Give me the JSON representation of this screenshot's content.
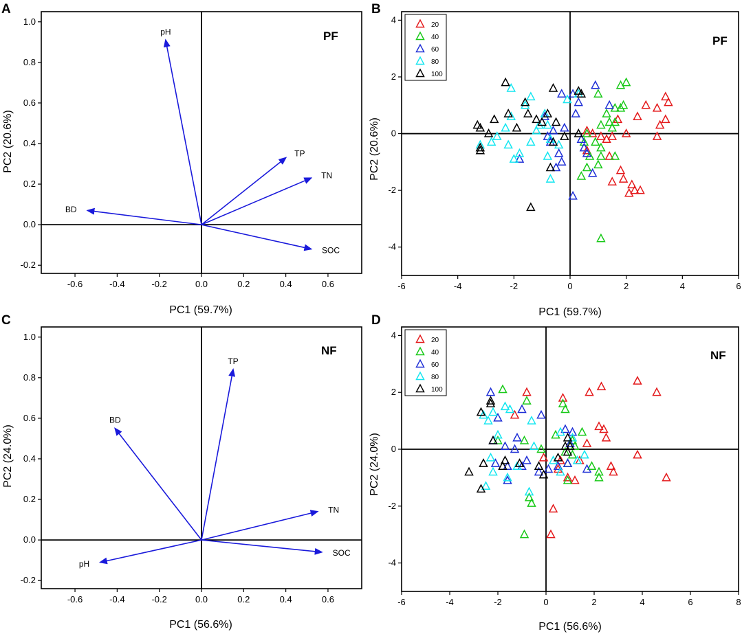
{
  "figure": {
    "panels": {
      "A": {
        "letter": "A",
        "tag": "PF"
      },
      "B": {
        "letter": "B",
        "tag": "PF"
      },
      "C": {
        "letter": "C",
        "tag": "NF"
      },
      "D": {
        "letter": "D",
        "tag": "NF"
      }
    }
  },
  "colors": {
    "vector": "#1a1adb",
    "axis": "#000000",
    "20": "#e41a1c",
    "40": "#19c919",
    "60": "#1f2fd6",
    "80": "#14e6f0",
    "100": "#000000"
  },
  "chart_data": [
    {
      "id": "A",
      "type": "scatter",
      "subtype": "loading-vectors",
      "xlabel": "PC1 (59.7%)",
      "ylabel": "PC2 (20.6%)",
      "xlim": [
        -0.76,
        0.76
      ],
      "ylim": [
        -0.24,
        1.05
      ],
      "xticks": [
        "-0.6",
        "-0.4",
        "-0.2",
        "0.0",
        "0.2",
        "0.4",
        "0.6"
      ],
      "xtick_values": [
        -0.6,
        -0.4,
        -0.2,
        0.0,
        0.2,
        0.4,
        0.6
      ],
      "yticks": [
        "-0.2",
        "0.0",
        "0.2",
        "0.4",
        "0.6",
        "0.8",
        "1.0"
      ],
      "ytick_values": [
        -0.2,
        0.0,
        0.2,
        0.4,
        0.6,
        0.8,
        1.0
      ],
      "vectors": [
        {
          "name": "pH",
          "x": -0.17,
          "y": 0.91
        },
        {
          "name": "TP",
          "x": 0.4,
          "y": 0.33
        },
        {
          "name": "TN",
          "x": 0.52,
          "y": 0.23
        },
        {
          "name": "BD",
          "x": -0.54,
          "y": 0.07
        },
        {
          "name": "SOC",
          "x": 0.52,
          "y": -0.12
        }
      ]
    },
    {
      "id": "B",
      "type": "scatter",
      "xlabel": "PC1 (59.7%)",
      "ylabel": "PC2 (20.6%)",
      "xlim": [
        -6,
        6
      ],
      "ylim": [
        -5,
        4.3
      ],
      "xticks": [
        "-6",
        "-4",
        "-2",
        "0",
        "2",
        "4",
        "6"
      ],
      "xtick_values": [
        -6,
        -4,
        -2,
        0,
        2,
        4,
        6
      ],
      "yticks": [
        "-4",
        "-2",
        "0",
        "2",
        "4"
      ],
      "ytick_values": [
        -4,
        -2,
        0,
        2,
        4
      ],
      "legend": [
        "20",
        "40",
        "60",
        "80",
        "100"
      ],
      "series": [
        {
          "name": "20",
          "points": [
            [
              2.7,
              1.0
            ],
            [
              3.1,
              0.9
            ],
            [
              3.4,
              1.3
            ],
            [
              3.5,
              1.1
            ],
            [
              2.4,
              0.6
            ],
            [
              3.4,
              0.5
            ],
            [
              3.2,
              0.3
            ],
            [
              3.1,
              -0.1
            ],
            [
              1.7,
              0.5
            ],
            [
              2.0,
              0.0
            ],
            [
              1.5,
              -0.1
            ],
            [
              1.1,
              -0.1
            ],
            [
              0.6,
              0.1
            ],
            [
              0.6,
              -0.6
            ],
            [
              1.3,
              -0.2
            ],
            [
              1.4,
              -0.8
            ],
            [
              1.8,
              -1.3
            ],
            [
              1.9,
              -1.6
            ],
            [
              2.2,
              -1.8
            ],
            [
              2.3,
              -2.0
            ],
            [
              2.5,
              -2.0
            ],
            [
              2.1,
              -2.1
            ],
            [
              1.5,
              -1.7
            ],
            [
              0.8,
              0.0
            ]
          ]
        },
        {
          "name": "40",
          "points": [
            [
              1.8,
              1.7
            ],
            [
              2.0,
              1.8
            ],
            [
              1.6,
              0.9
            ],
            [
              1.8,
              0.9
            ],
            [
              1.9,
              1.0
            ],
            [
              1.0,
              1.4
            ],
            [
              1.4,
              0.4
            ],
            [
              1.6,
              0.4
            ],
            [
              1.3,
              0.7
            ],
            [
              1.1,
              0.3
            ],
            [
              1.5,
              0.2
            ],
            [
              0.6,
              0.0
            ],
            [
              0.5,
              -0.3
            ],
            [
              0.9,
              -0.3
            ],
            [
              1.1,
              -0.5
            ],
            [
              1.6,
              -0.8
            ],
            [
              1.1,
              -0.8
            ],
            [
              0.7,
              -0.8
            ],
            [
              0.6,
              -1.2
            ],
            [
              1.0,
              -1.1
            ],
            [
              0.4,
              -1.5
            ],
            [
              1.1,
              -3.7
            ]
          ]
        },
        {
          "name": "60",
          "points": [
            [
              0.9,
              1.7
            ],
            [
              0.1,
              1.4
            ],
            [
              1.4,
              1.0
            ],
            [
              0.3,
              1.1
            ],
            [
              -0.3,
              1.4
            ],
            [
              -0.9,
              0.6
            ],
            [
              0.2,
              0.7
            ],
            [
              -0.2,
              0.2
            ],
            [
              -0.6,
              0.1
            ],
            [
              -0.8,
              -0.1
            ],
            [
              0.4,
              -0.2
            ],
            [
              0.5,
              -0.5
            ],
            [
              0.6,
              -0.7
            ],
            [
              -0.7,
              -0.3
            ],
            [
              -0.3,
              -1.0
            ],
            [
              -0.4,
              -0.7
            ],
            [
              -0.5,
              -1.2
            ],
            [
              0.8,
              -1.4
            ],
            [
              0.1,
              -2.2
            ],
            [
              -1.8,
              -0.9
            ]
          ]
        },
        {
          "name": "80",
          "points": [
            [
              -2.1,
              1.6
            ],
            [
              -1.4,
              1.3
            ],
            [
              -1.6,
              1.0
            ],
            [
              -1.1,
              0.3
            ],
            [
              -2.1,
              0.6
            ],
            [
              -2.3,
              0.2
            ],
            [
              -2.6,
              -0.1
            ],
            [
              -2.8,
              -0.3
            ],
            [
              -2.2,
              -0.4
            ],
            [
              -1.4,
              -0.3
            ],
            [
              -1.2,
              0.1
            ],
            [
              -2.0,
              -0.9
            ],
            [
              -1.8,
              -0.7
            ],
            [
              -0.1,
              1.2
            ],
            [
              -0.8,
              0.3
            ],
            [
              -0.7,
              -0.2
            ],
            [
              -0.4,
              -0.4
            ],
            [
              -0.7,
              -1.6
            ],
            [
              -0.9,
              0.7
            ],
            [
              0.3,
              1.4
            ],
            [
              -3.2,
              -0.4
            ],
            [
              -0.8,
              -0.8
            ]
          ]
        },
        {
          "name": "100",
          "points": [
            [
              -2.3,
              1.8
            ],
            [
              -0.6,
              1.6
            ],
            [
              0.3,
              1.5
            ],
            [
              0.4,
              1.4
            ],
            [
              -1.6,
              1.1
            ],
            [
              -2.2,
              0.7
            ],
            [
              -1.5,
              0.7
            ],
            [
              -1.2,
              0.5
            ],
            [
              -1.0,
              0.4
            ],
            [
              -0.8,
              0.7
            ],
            [
              -0.5,
              0.4
            ],
            [
              -0.6,
              -0.3
            ],
            [
              -0.2,
              -0.1
            ],
            [
              -3.3,
              0.3
            ],
            [
              -3.2,
              0.2
            ],
            [
              -2.9,
              0.0
            ],
            [
              -3.2,
              -0.5
            ],
            [
              -3.2,
              -0.6
            ],
            [
              -1.9,
              0.2
            ],
            [
              -2.7,
              0.5
            ],
            [
              -0.7,
              -1.2
            ],
            [
              -1.4,
              -2.6
            ],
            [
              0.3,
              0.0
            ]
          ]
        }
      ]
    },
    {
      "id": "C",
      "type": "scatter",
      "subtype": "loading-vectors",
      "xlabel": "PC1 (56.6%)",
      "ylabel": "PC2 (24.0%)",
      "xlim": [
        -0.76,
        0.76
      ],
      "ylim": [
        -0.24,
        1.05
      ],
      "xticks": [
        "-0.6",
        "-0.4",
        "-0.2",
        "0.0",
        "0.2",
        "0.4",
        "0.6"
      ],
      "xtick_values": [
        -0.6,
        -0.4,
        -0.2,
        0.0,
        0.2,
        0.4,
        0.6
      ],
      "yticks": [
        "-0.2",
        "0.0",
        "0.2",
        "0.4",
        "0.6",
        "0.8",
        "1.0"
      ],
      "ytick_values": [
        -0.2,
        0.0,
        0.2,
        0.4,
        0.6,
        0.8,
        1.0
      ],
      "vectors": [
        {
          "name": "TP",
          "x": 0.15,
          "y": 0.84
        },
        {
          "name": "BD",
          "x": -0.41,
          "y": 0.55
        },
        {
          "name": "TN",
          "x": 0.55,
          "y": 0.14
        },
        {
          "name": "SOC",
          "x": 0.57,
          "y": -0.06
        },
        {
          "name": "pH",
          "x": -0.48,
          "y": -0.11
        }
      ]
    },
    {
      "id": "D",
      "type": "scatter",
      "xlabel": "PC1 (56.6%)",
      "ylabel": "PC2 (24.0%)",
      "xlim": [
        -6,
        8
      ],
      "ylim": [
        -5,
        4.3
      ],
      "xticks": [
        "-6",
        "-4",
        "-2",
        "0",
        "2",
        "4",
        "6",
        "8"
      ],
      "xtick_values": [
        -6,
        -4,
        -2,
        0,
        2,
        4,
        6,
        8
      ],
      "yticks": [
        "-4",
        "-2",
        "0",
        "2",
        "4"
      ],
      "ytick_values": [
        -4,
        -2,
        0,
        2,
        4
      ],
      "legend": [
        "20",
        "40",
        "60",
        "80",
        "100"
      ],
      "series": [
        {
          "name": "20",
          "points": [
            [
              3.8,
              2.4
            ],
            [
              4.6,
              2.0
            ],
            [
              2.3,
              2.2
            ],
            [
              1.8,
              2.0
            ],
            [
              -0.8,
              2.0
            ],
            [
              0.7,
              1.8
            ],
            [
              -1.3,
              1.2
            ],
            [
              2.2,
              0.8
            ],
            [
              2.4,
              0.7
            ],
            [
              2.5,
              0.4
            ],
            [
              2.7,
              -0.6
            ],
            [
              2.8,
              -0.8
            ],
            [
              3.8,
              -0.2
            ],
            [
              5.0,
              -1.0
            ],
            [
              1.7,
              0.2
            ],
            [
              1.4,
              -0.4
            ],
            [
              0.9,
              -1.0
            ],
            [
              1.2,
              -1.1
            ],
            [
              0.5,
              -0.7
            ],
            [
              0.3,
              -2.1
            ],
            [
              0.2,
              -3.0
            ],
            [
              -0.1,
              -0.3
            ],
            [
              0.6,
              -0.4
            ]
          ]
        },
        {
          "name": "40",
          "points": [
            [
              -1.8,
              2.1
            ],
            [
              0.7,
              1.6
            ],
            [
              0.8,
              1.4
            ],
            [
              -0.8,
              1.7
            ],
            [
              -2.0,
              0.3
            ],
            [
              -0.9,
              0.3
            ],
            [
              -0.2,
              0.0
            ],
            [
              1.1,
              0.3
            ],
            [
              1.5,
              0.6
            ],
            [
              1.1,
              -0.2
            ],
            [
              1.9,
              -0.6
            ],
            [
              2.2,
              -0.8
            ],
            [
              2.2,
              -1.0
            ],
            [
              0.9,
              -0.5
            ],
            [
              0.9,
              -1.1
            ],
            [
              -0.6,
              -1.9
            ],
            [
              -0.7,
              -1.7
            ],
            [
              -0.9,
              -3.0
            ],
            [
              0.8,
              -0.1
            ],
            [
              1.2,
              0.1
            ],
            [
              0.4,
              0.5
            ]
          ]
        },
        {
          "name": "60",
          "points": [
            [
              -2.3,
              2.0
            ],
            [
              -1.0,
              1.4
            ],
            [
              -0.2,
              1.2
            ],
            [
              0.8,
              0.7
            ],
            [
              1.1,
              0.6
            ],
            [
              -1.2,
              0.4
            ],
            [
              -1.7,
              0.1
            ],
            [
              -1.3,
              0.0
            ],
            [
              -2.2,
              0.3
            ],
            [
              -2.0,
              1.1
            ],
            [
              -1.6,
              -0.6
            ],
            [
              -2.1,
              -0.5
            ],
            [
              -0.8,
              -0.4
            ],
            [
              -1.0,
              -0.6
            ],
            [
              -1.6,
              -1.1
            ],
            [
              0.1,
              -0.7
            ],
            [
              0.5,
              -0.6
            ],
            [
              0.9,
              -0.5
            ],
            [
              1.7,
              -0.7
            ],
            [
              -0.3,
              -0.8
            ],
            [
              1.0,
              0.2
            ]
          ]
        },
        {
          "name": "80",
          "points": [
            [
              -2.6,
              1.2
            ],
            [
              -2.2,
              1.3
            ],
            [
              -1.7,
              1.5
            ],
            [
              -1.5,
              1.4
            ],
            [
              -2.4,
              1.0
            ],
            [
              -0.6,
              1.0
            ],
            [
              0.6,
              0.6
            ],
            [
              1.1,
              0.4
            ],
            [
              -2.0,
              0.5
            ],
            [
              -2.3,
              -0.3
            ],
            [
              -2.2,
              -0.8
            ],
            [
              -1.6,
              -1.0
            ],
            [
              -2.5,
              -1.3
            ],
            [
              -0.7,
              -1.5
            ],
            [
              -1.2,
              -0.6
            ],
            [
              -0.5,
              0.1
            ],
            [
              0.3,
              -0.4
            ],
            [
              0.6,
              -0.8
            ],
            [
              1.6,
              -0.2
            ],
            [
              1.3,
              -0.4
            ]
          ]
        },
        {
          "name": "100",
          "points": [
            [
              -2.7,
              1.3
            ],
            [
              -2.3,
              1.7
            ],
            [
              -2.3,
              1.6
            ],
            [
              -2.2,
              0.3
            ],
            [
              -3.2,
              -0.8
            ],
            [
              -2.6,
              -0.5
            ],
            [
              -2.7,
              -1.4
            ],
            [
              -1.8,
              -0.6
            ],
            [
              -1.7,
              -0.4
            ],
            [
              -1.1,
              -0.5
            ],
            [
              -0.3,
              -0.6
            ],
            [
              -0.1,
              -0.9
            ],
            [
              0.5,
              -0.3
            ],
            [
              0.9,
              0.4
            ],
            [
              1.0,
              0.1
            ],
            [
              0.8,
              0.1
            ],
            [
              0.9,
              -0.1
            ]
          ]
        }
      ]
    }
  ]
}
